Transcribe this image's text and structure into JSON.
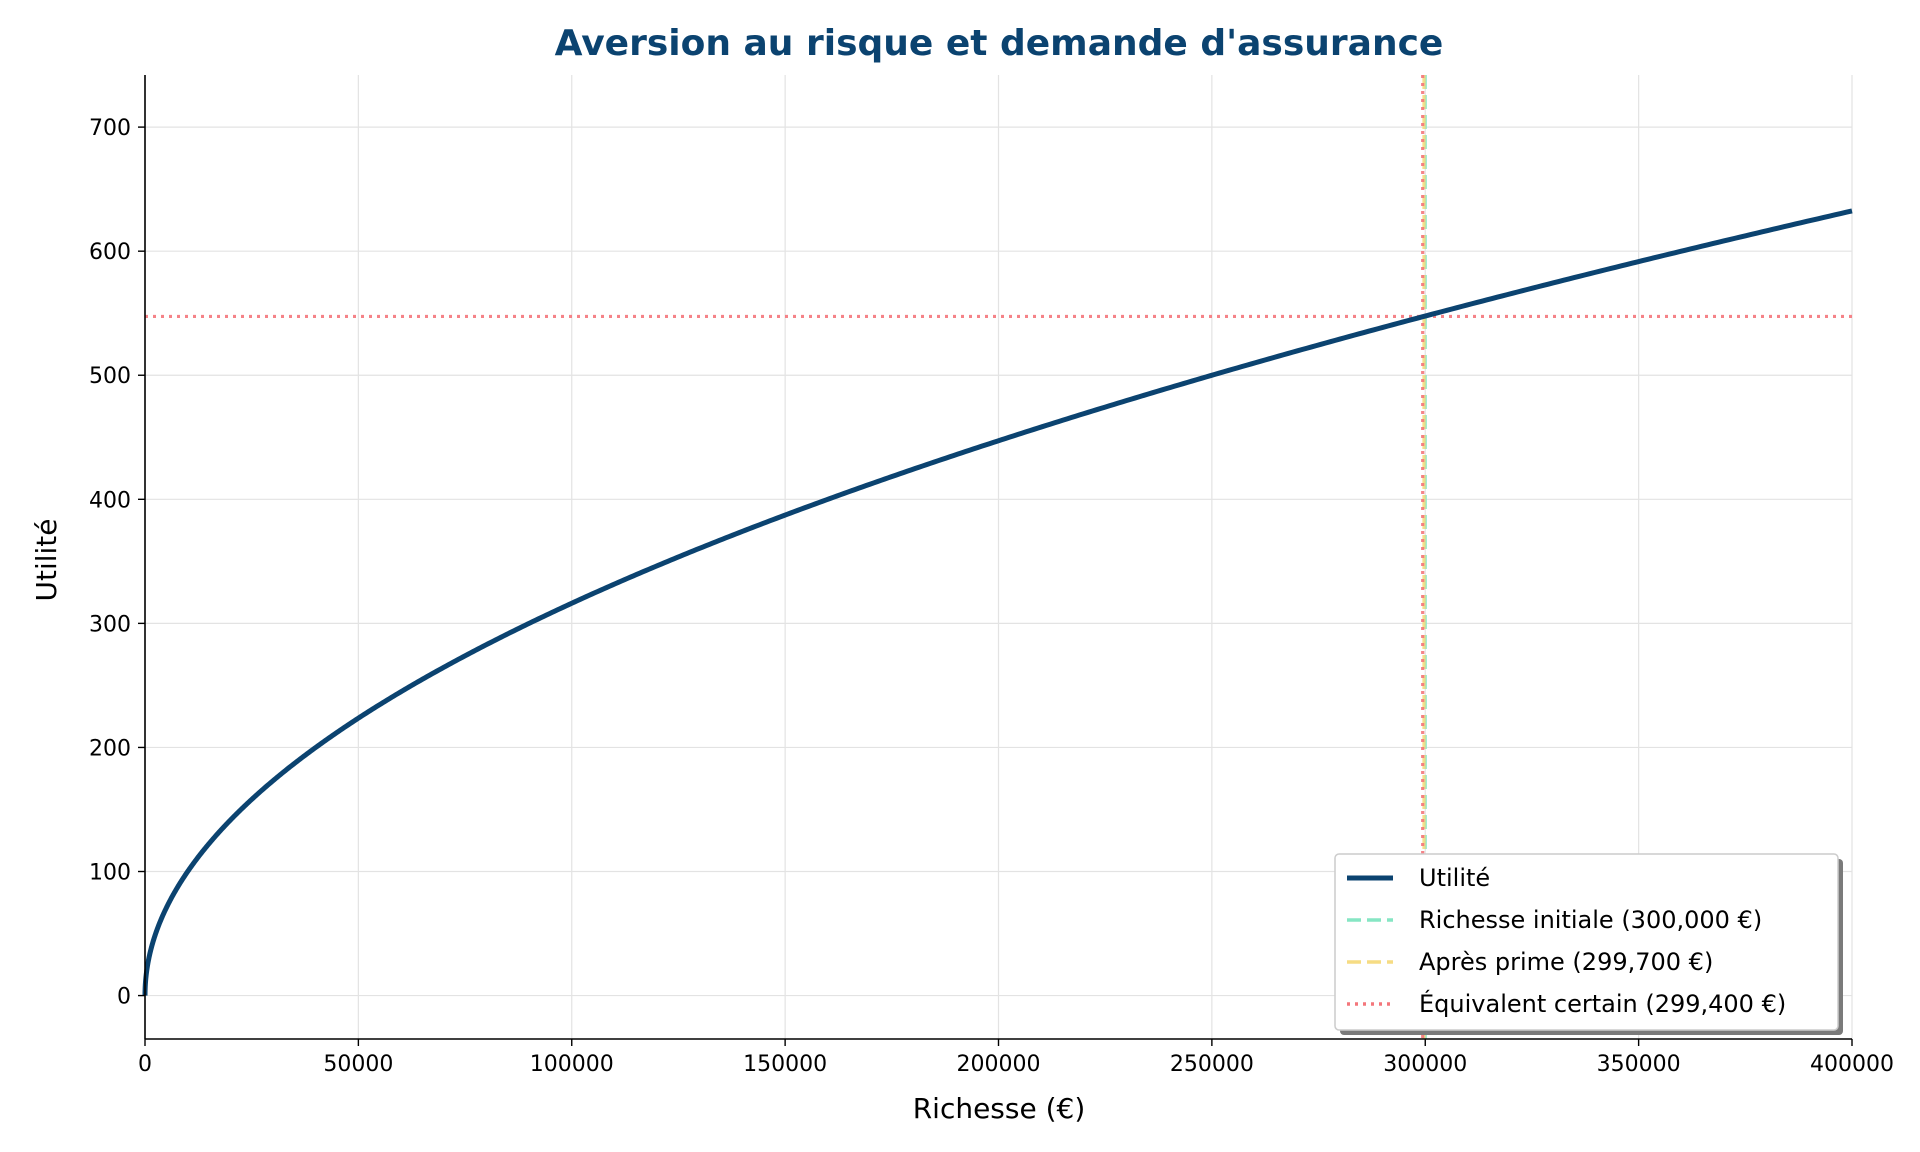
{
  "chart_data": {
    "type": "line",
    "title": "Aversion au risque et demande d'assurance",
    "title_color": "#0b4370",
    "xlabel": "Richesse (€)",
    "ylabel": "Utilité",
    "xlim": [
      0,
      400000
    ],
    "ylim": [
      -35,
      742
    ],
    "x_ticks": [
      0,
      50000,
      100000,
      150000,
      200000,
      250000,
      300000,
      350000,
      400000
    ],
    "x_tick_labels": [
      "0",
      "50000",
      "100000",
      "150000",
      "200000",
      "250000",
      "300000",
      "350000",
      "400000"
    ],
    "y_ticks": [
      0,
      100,
      200,
      300,
      400,
      500,
      600,
      700
    ],
    "y_tick_labels": [
      "0",
      "100",
      "200",
      "300",
      "400",
      "500",
      "600",
      "700"
    ],
    "grid": true,
    "legend_position": "lower-right",
    "series": [
      {
        "name": "Utilité",
        "function": "sqrt",
        "x_range": [
          0,
          400000
        ],
        "color": "#0b4370",
        "style": "solid"
      }
    ],
    "reference_lines": [
      {
        "name": "Richesse initiale (300,000 €)",
        "orientation": "vertical",
        "value": 300000,
        "color": "#86e6c4",
        "style": "dashed"
      },
      {
        "name": "Après prime (299,700 €)",
        "orientation": "vertical",
        "value": 299700,
        "color": "#f6dc83",
        "style": "dashed"
      },
      {
        "name": "Équivalent certain (299,400 €)",
        "orientation": "vertical",
        "value": 299400,
        "color": "#f4767b",
        "style": "dotted"
      },
      {
        "name": "",
        "orientation": "horizontal",
        "value": 547.4,
        "color": "#f4767b",
        "style": "dotted"
      }
    ],
    "legend": [
      {
        "label": "Utilité",
        "color": "#0b4370",
        "style": "solid"
      },
      {
        "label": "Richesse initiale (300,000 €)",
        "color": "#86e6c4",
        "style": "dashed"
      },
      {
        "label": "Après prime (299,700 €)",
        "color": "#f6dc83",
        "style": "dashed"
      },
      {
        "label": "Équivalent certain (299,400 €)",
        "color": "#f4767b",
        "style": "dotted"
      }
    ]
  }
}
